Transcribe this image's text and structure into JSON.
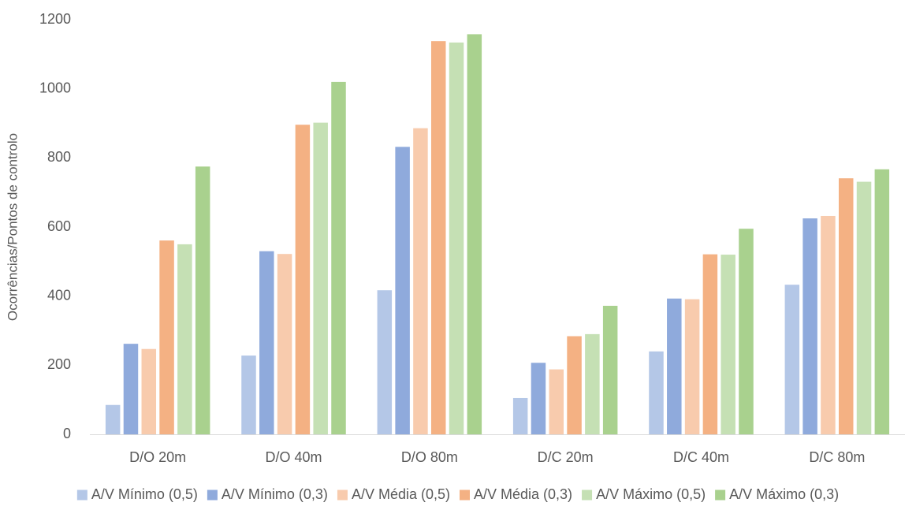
{
  "chart_data": {
    "type": "bar",
    "title": "",
    "xlabel": "",
    "ylabel": "Ocorrências/Pontos de controlo",
    "ylim": [
      0,
      1200
    ],
    "yticks": [
      0,
      200,
      400,
      600,
      800,
      1000,
      1200
    ],
    "grid": false,
    "legend_position": "bottom",
    "categories": [
      "D/O 20m",
      "D/O 40m",
      "D/O 80m",
      "D/C 20m",
      "D/C 40m",
      "D/C 80m"
    ],
    "series": [
      {
        "name": "A/V Mínimo (0,5)",
        "color": "#B4C7E7",
        "values": [
          85,
          228,
          417,
          105,
          240,
          433
        ]
      },
      {
        "name": "A/V Mínimo (0,3)",
        "color": "#8FAADC",
        "values": [
          262,
          530,
          832,
          207,
          393,
          625
        ]
      },
      {
        "name": "A/V Média (0,5)",
        "color": "#F8CBAD",
        "values": [
          247,
          522,
          886,
          188,
          391,
          632
        ]
      },
      {
        "name": "A/V Média (0,3)",
        "color": "#F4B183",
        "values": [
          561,
          896,
          1138,
          284,
          521,
          741
        ]
      },
      {
        "name": "A/V Máximo (0,5)",
        "color": "#C5E0B4",
        "values": [
          550,
          902,
          1134,
          290,
          520,
          731
        ]
      },
      {
        "name": "A/V Máximo (0,3)",
        "color": "#A9D18E",
        "values": [
          775,
          1020,
          1158,
          372,
          595,
          767
        ]
      }
    ]
  }
}
